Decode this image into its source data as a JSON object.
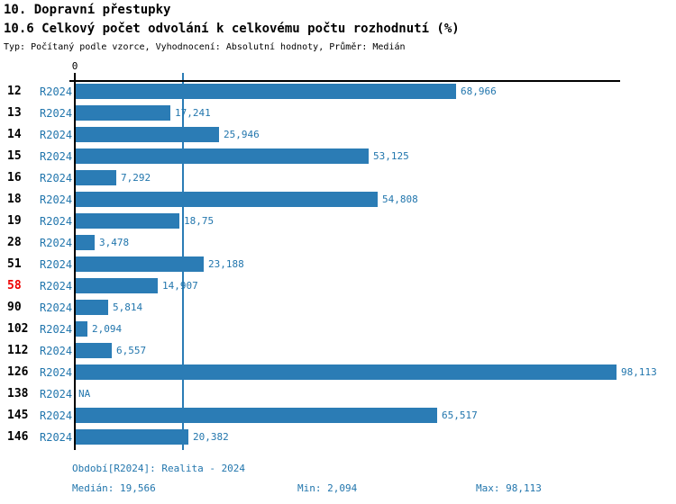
{
  "header": {
    "title": "10. Dopravní přestupky",
    "subtitle": "10.6 Celkový počet odvolání k celkovému počtu rozhodnutí (%)",
    "meta": "Typ: Počítaný podle vzorce, Vyhodnocení: Absolutní hodnoty, Průměr: Medián"
  },
  "chart_data": {
    "type": "bar",
    "orientation": "horizontal",
    "title": "10.6 Celkový počet odvolání k celkovému počtu rozhodnutí (%)",
    "axis_zero_label": "0",
    "series_label": "R2024",
    "categories": [
      "12",
      "13",
      "14",
      "15",
      "16",
      "18",
      "19",
      "28",
      "51",
      "58",
      "90",
      "102",
      "112",
      "126",
      "138",
      "145",
      "146"
    ],
    "values": [
      68.966,
      17.241,
      25.946,
      53.125,
      7.292,
      54.808,
      18.75,
      3.478,
      23.188,
      14.907,
      5.814,
      2.094,
      6.557,
      98.113,
      null,
      65.517,
      20.382
    ],
    "value_labels": [
      "68,966",
      "17,241",
      "25,946",
      "53,125",
      "7,292",
      "54,808",
      "18,75",
      "3,478",
      "23,188",
      "14,907",
      "5,814",
      "2,094",
      "6,557",
      "98,113",
      "NA",
      "65,517",
      "20,382"
    ],
    "highlighted_category": "58",
    "xlim": [
      0,
      98.113
    ],
    "median_line": 19.566,
    "grid": false,
    "legend": false,
    "colors": {
      "bar": "#2b7cb5",
      "text": "#2276ad",
      "highlight": "#ee0000"
    }
  },
  "footer": {
    "period": "Období[R2024]: Realita - 2024",
    "median": "Medián: 19,566",
    "min": "Min: 2,094",
    "max": "Max: 98,113"
  }
}
